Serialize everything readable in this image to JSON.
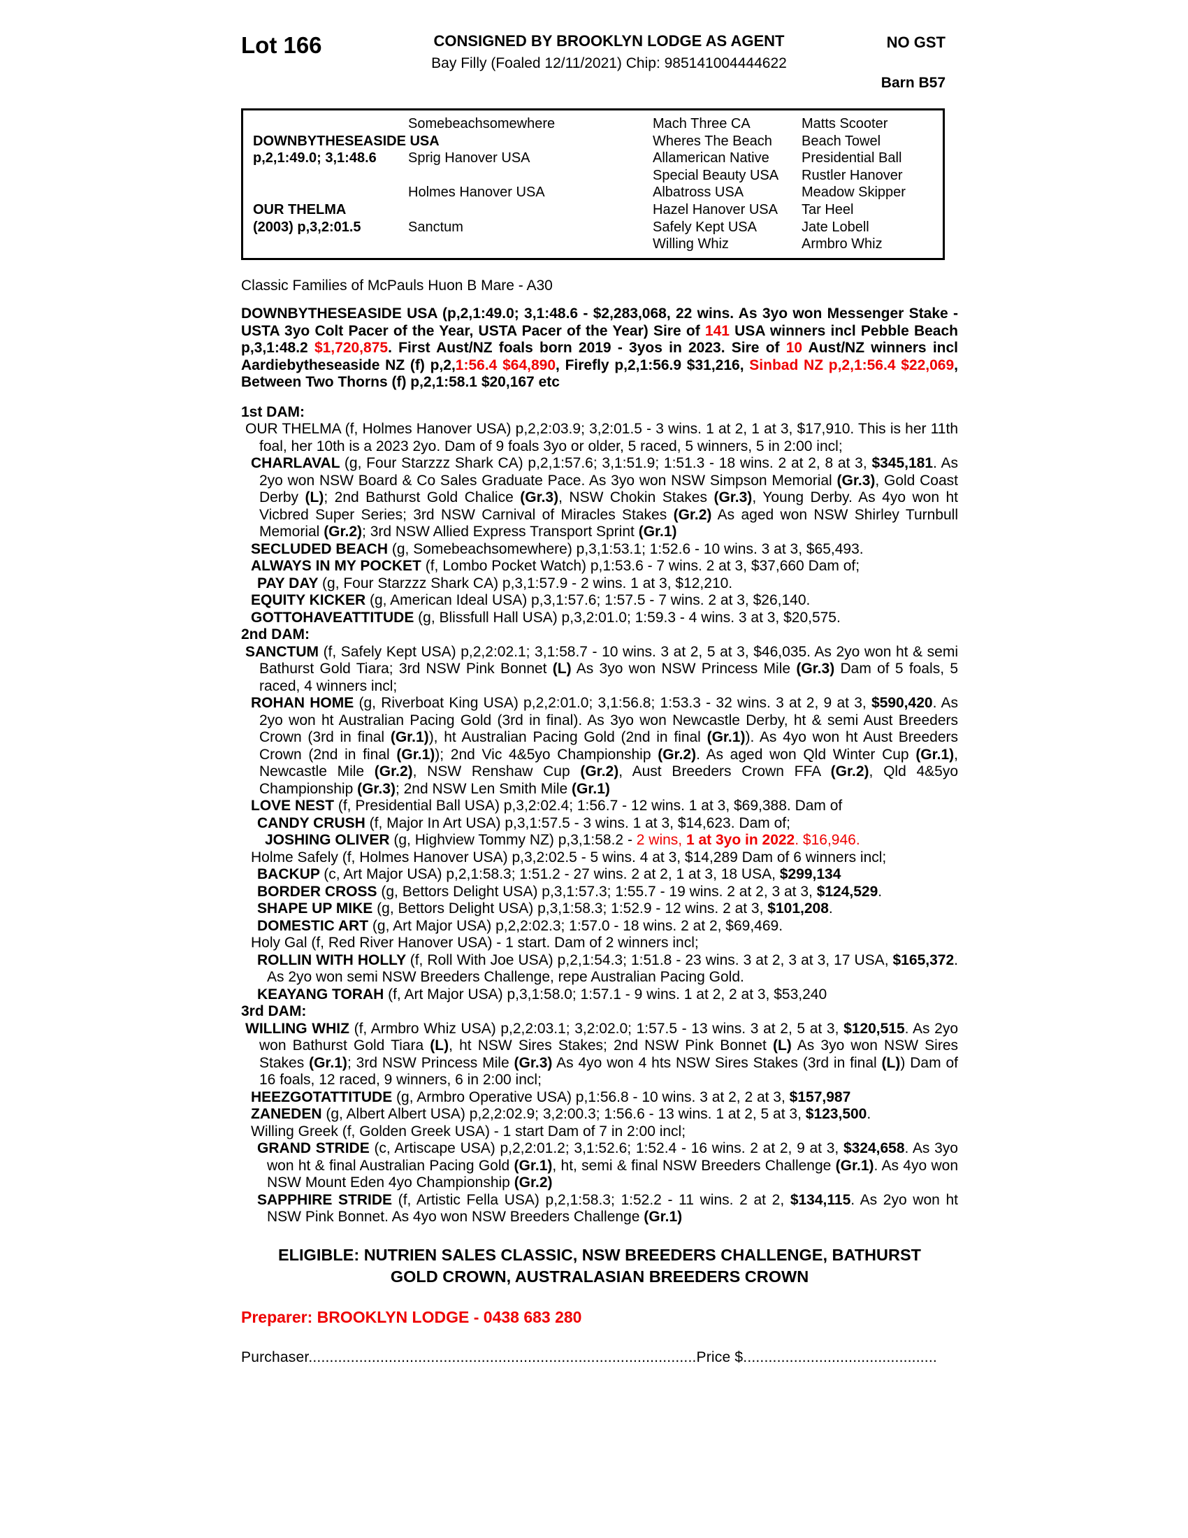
{
  "header": {
    "lot": "Lot 166",
    "consigned": "CONSIGNED BY BROOKLYN LODGE AS AGENT",
    "no_gst": "NO GST",
    "subtitle": "Bay Filly (Foaled 12/11/2021) Chip: 985141004444622",
    "barn": "Barn B57"
  },
  "pedigree": {
    "rows": [
      [
        "",
        "Somebeachsomewhere",
        "Mach Three CA",
        "Matts Scooter"
      ],
      [
        "DOWNBYTHESEASIDE USA",
        "",
        "Wheres The Beach",
        "Beach Towel"
      ],
      [
        "p,2,1:49.0; 3,1:48.6",
        "Sprig Hanover USA",
        "Allamerican Native",
        "Presidential Ball"
      ],
      [
        "",
        "",
        "Special Beauty USA",
        "Rustler Hanover"
      ],
      [
        "",
        "Holmes Hanover USA",
        "Albatross USA",
        "Meadow Skipper"
      ],
      [
        "OUR THELMA",
        "",
        "Hazel Hanover USA",
        "Tar Heel"
      ],
      [
        "(2003) p,3,2:01.5",
        "Sanctum",
        "Safely Kept USA",
        "Jate Lobell"
      ],
      [
        "",
        "",
        "Willing Whiz",
        "Armbro Whiz"
      ]
    ]
  },
  "body": [
    {
      "name": "classic-families-line",
      "cls": "i0",
      "mt": 0,
      "seg": [
        {
          "t": "Classic Families of McPauls Huon B Mare - A30"
        }
      ]
    },
    {
      "name": "sire-summary",
      "cls": "i0 just",
      "mt": 16,
      "seg": [
        {
          "t": "DOWNBYTHESEASIDE USA (p,2,1:49.0; 3,1:48.6 - $2,283,068, 22 wins. As 3yo won Messenger Stake - USTA 3yo Colt Pacer of the Year, USTA Pacer of the Year) Sire of ",
          "b": true
        },
        {
          "t": "141",
          "b": true,
          "r": true
        },
        {
          "t": " USA winners incl Pebble Beach p,3,1:48.2 ",
          "b": true
        },
        {
          "t": "$1,720,875",
          "b": true,
          "r": true
        },
        {
          "t": ". First Aust/NZ foals born 2019 - 3yos in 2023. Sire of ",
          "b": true
        },
        {
          "t": "10",
          "b": true,
          "r": true
        },
        {
          "t": " Aust/NZ winners incl Aardiebytheseaside NZ (f) p,2,",
          "b": true
        },
        {
          "t": "1:56.4 $64,890",
          "b": true,
          "r": true
        },
        {
          "t": ", Firefly p,2,1:56.9 $31,216, ",
          "b": true
        },
        {
          "t": "Sinbad NZ p,2,1:56.4 $22,069",
          "b": true,
          "r": true
        },
        {
          "t": ", Between Two Thorns (f) p,2,1:58.1 $20,167 etc",
          "b": true
        }
      ]
    },
    {
      "name": "first-dam-heading",
      "cls": "i0",
      "mt": 18,
      "seg": [
        {
          "t": "1st DAM:",
          "b": true
        }
      ]
    },
    {
      "name": "entry-our-thelma",
      "cls": "h0 just",
      "mt": 0,
      "seg": [
        {
          "t": "OUR THELMA (f, Holmes Hanover USA) p,2,2:03.9; 3,2:01.5 - 3 wins. 1 at 2, 1 at 3, $17,910. This is her 11th foal, her 10th is a 2023 2yo. Dam of 9 foals 3yo or older, 5 raced, 5 winners, 5 in 2:00 incl;"
        }
      ]
    },
    {
      "name": "entry-charlaval",
      "cls": "h1 just",
      "mt": 0,
      "seg": [
        {
          "t": "CHARLAVAL ",
          "b": true
        },
        {
          "t": "(g, Four Starzzz Shark CA) p,2,1:57.6; 3,1:51.9; 1:51.3 - 18 wins. 2 at 2, 8 at 3, "
        },
        {
          "t": "$345,181",
          "b": true
        },
        {
          "t": ". As 2yo won NSW Board & Co Sales Graduate Pace. As 3yo won NSW Simpson Memorial "
        },
        {
          "t": "(Gr.3)",
          "b": true
        },
        {
          "t": ", Gold Coast Derby "
        },
        {
          "t": "(L)",
          "b": true
        },
        {
          "t": "; 2nd Bathurst Gold Chalice "
        },
        {
          "t": "(Gr.3)",
          "b": true
        },
        {
          "t": ", NSW Chokin Stakes "
        },
        {
          "t": "(Gr.3)",
          "b": true
        },
        {
          "t": ", Young Derby. As 4yo won ht Vicbred Super Series; 3rd NSW Carnival of Miracles Stakes "
        },
        {
          "t": "(Gr.2)",
          "b": true
        },
        {
          "t": " As aged won NSW Shirley Turnbull Memorial "
        },
        {
          "t": "(Gr.2)",
          "b": true
        },
        {
          "t": "; 3rd NSW Allied Express Transport Sprint "
        },
        {
          "t": "(Gr.1)",
          "b": true
        }
      ]
    },
    {
      "name": "entry-secluded-beach",
      "cls": "h1",
      "mt": 0,
      "seg": [
        {
          "t": "SECLUDED BEACH ",
          "b": true
        },
        {
          "t": "(g, Somebeachsomewhere) p,3,1:53.1; 1:52.6 - 10 wins. 3 at 3, $65,493."
        }
      ]
    },
    {
      "name": "entry-always-in-my-pocket",
      "cls": "h1",
      "mt": 0,
      "seg": [
        {
          "t": "ALWAYS IN MY POCKET ",
          "b": true
        },
        {
          "t": "(f, Lombo Pocket Watch) p,1:53.6 - 7 wins. 2 at 3, $37,660 Dam of;"
        }
      ]
    },
    {
      "name": "entry-pay-day",
      "cls": "h2",
      "mt": 0,
      "seg": [
        {
          "t": "PAY DAY ",
          "b": true
        },
        {
          "t": "(g, Four Starzzz Shark CA) p,3,1:57.9 - 2 wins. 1 at 3, $12,210."
        }
      ]
    },
    {
      "name": "entry-equity-kicker",
      "cls": "h1",
      "mt": 0,
      "seg": [
        {
          "t": "EQUITY KICKER ",
          "b": true
        },
        {
          "t": "(g, American Ideal USA) p,3,1:57.6; 1:57.5 - 7 wins. 2 at 3, $26,140."
        }
      ]
    },
    {
      "name": "entry-gottohaveattitude",
      "cls": "h1",
      "mt": 0,
      "seg": [
        {
          "t": "GOTTOHAVEATTITUDE ",
          "b": true
        },
        {
          "t": "(g, Blissfull Hall USA) p,3,2:01.0; 1:59.3 - 4 wins. 3 at 3, $20,575."
        }
      ]
    },
    {
      "name": "second-dam-heading",
      "cls": "i0",
      "mt": 0,
      "seg": [
        {
          "t": "2nd DAM:",
          "b": true
        }
      ]
    },
    {
      "name": "entry-sanctum",
      "cls": "h0 just",
      "mt": 0,
      "seg": [
        {
          "t": "SANCTUM ",
          "b": true
        },
        {
          "t": "(f, Safely Kept USA) p,2,2:02.1; 3,1:58.7 - 10 wins. 3 at 2, 5 at 3, $46,035. As 2yo won ht & semi Bathurst Gold Tiara; 3rd NSW Pink Bonnet "
        },
        {
          "t": "(L)",
          "b": true
        },
        {
          "t": " As 3yo won NSW Princess Mile "
        },
        {
          "t": "(Gr.3)",
          "b": true
        },
        {
          "t": " Dam of 5 foals, 5 raced, 4 winners incl;"
        }
      ]
    },
    {
      "name": "entry-rohan-home",
      "cls": "h1 just",
      "mt": 0,
      "seg": [
        {
          "t": "ROHAN HOME ",
          "b": true
        },
        {
          "t": "(g, Riverboat King USA) p,2,2:01.0; 3,1:56.8; 1:53.3 - 32 wins. 3 at 2, 9 at 3, "
        },
        {
          "t": "$590,420",
          "b": true
        },
        {
          "t": ". As 2yo won ht Australian Pacing Gold (3rd in final). As 3yo won Newcastle Derby, ht & semi Aust Breeders Crown (3rd in final "
        },
        {
          "t": "(Gr.1)",
          "b": true
        },
        {
          "t": "), ht Australian Pacing Gold (2nd in final "
        },
        {
          "t": "(Gr.1)",
          "b": true
        },
        {
          "t": "). As 4yo won ht Aust Breeders Crown (2nd in final "
        },
        {
          "t": "(Gr.1)",
          "b": true
        },
        {
          "t": "); 2nd Vic 4&5yo Championship "
        },
        {
          "t": "(Gr.2)",
          "b": true
        },
        {
          "t": ". As aged won Qld Winter Cup "
        },
        {
          "t": "(Gr.1)",
          "b": true
        },
        {
          "t": ", Newcastle Mile "
        },
        {
          "t": "(Gr.2)",
          "b": true
        },
        {
          "t": ", NSW Renshaw Cup "
        },
        {
          "t": "(Gr.2)",
          "b": true
        },
        {
          "t": ", Aust Breeders Crown FFA "
        },
        {
          "t": "(Gr.2)",
          "b": true
        },
        {
          "t": ", Qld 4&5yo Championship "
        },
        {
          "t": "(Gr.3)",
          "b": true
        },
        {
          "t": "; 2nd NSW Len Smith Mile "
        },
        {
          "t": "(Gr.1)",
          "b": true
        }
      ]
    },
    {
      "name": "entry-love-nest",
      "cls": "h1",
      "mt": 0,
      "seg": [
        {
          "t": "LOVE NEST ",
          "b": true
        },
        {
          "t": "(f, Presidential Ball USA) p,3,2:02.4; 1:56.7 - 12 wins. 1 at 3, $69,388. Dam of"
        }
      ]
    },
    {
      "name": "entry-candy-crush",
      "cls": "h2",
      "mt": 0,
      "seg": [
        {
          "t": "CANDY CRUSH ",
          "b": true
        },
        {
          "t": "(f, Major In Art USA) p,3,1:57.5 - 3 wins. 1 at 3, $14,623. Dam of;"
        }
      ]
    },
    {
      "name": "entry-joshing-oliver",
      "cls": "h3",
      "mt": 0,
      "seg": [
        {
          "t": "JOSHING OLIVER ",
          "b": true
        },
        {
          "t": "(g, Highview Tommy NZ) p,3,1:58.2 - "
        },
        {
          "t": "2 wins, ",
          "r": true
        },
        {
          "t": "1 at 3yo in 2022",
          "b": true,
          "r": true
        },
        {
          "t": ". $16,946.",
          "r": true
        }
      ]
    },
    {
      "name": "entry-holme-safely",
      "cls": "h1",
      "mt": 0,
      "seg": [
        {
          "t": "Holme Safely (f, Holmes Hanover USA) p,3,2:02.5 - 5 wins. 4 at 3, $14,289 Dam of 6 winners incl;"
        }
      ]
    },
    {
      "name": "entry-backup",
      "cls": "h2",
      "mt": 0,
      "seg": [
        {
          "t": "BACKUP ",
          "b": true
        },
        {
          "t": "(c, Art Major USA) p,2,1:58.3; 1:51.2 - 27 wins. 2 at 2, 1 at 3, 18 USA, "
        },
        {
          "t": "$299,134",
          "b": true
        }
      ]
    },
    {
      "name": "entry-border-cross",
      "cls": "h2",
      "mt": 0,
      "seg": [
        {
          "t": "BORDER CROSS ",
          "b": true
        },
        {
          "t": "(g, Bettors Delight USA) p,3,1:57.3; 1:55.7 - 19 wins. 2 at 2, 3 at 3, "
        },
        {
          "t": "$124,529",
          "b": true
        },
        {
          "t": "."
        }
      ]
    },
    {
      "name": "entry-shape-up-mike",
      "cls": "h2",
      "mt": 0,
      "seg": [
        {
          "t": "SHAPE UP MIKE ",
          "b": true
        },
        {
          "t": "(g, Bettors Delight USA) p,3,1:58.3; 1:52.9 - 12 wins. 2 at 3, "
        },
        {
          "t": "$101,208",
          "b": true
        },
        {
          "t": "."
        }
      ]
    },
    {
      "name": "entry-domestic-art",
      "cls": "h2",
      "mt": 0,
      "seg": [
        {
          "t": "DOMESTIC ART ",
          "b": true
        },
        {
          "t": "(g, Art Major USA) p,2,2:02.3; 1:57.0 - 18 wins. 2 at 2, $69,469."
        }
      ]
    },
    {
      "name": "entry-holy-gal",
      "cls": "h1",
      "mt": 0,
      "seg": [
        {
          "t": "Holy Gal (f, Red River Hanover USA) - 1 start. Dam of 2 winners incl;"
        }
      ]
    },
    {
      "name": "entry-rollin-with-holly",
      "cls": "h2 just",
      "mt": 0,
      "seg": [
        {
          "t": "ROLLIN WITH HOLLY ",
          "b": true
        },
        {
          "t": "(f, Roll With Joe USA) p,2,1:54.3; 1:51.8 - 23 wins. 3 at 2, 3 at 3, 17 USA, "
        },
        {
          "t": "$165,372",
          "b": true
        },
        {
          "t": ". As 2yo won semi NSW Breeders Challenge, repe Australian Pacing Gold."
        }
      ]
    },
    {
      "name": "entry-keayang-torah",
      "cls": "h2",
      "mt": 0,
      "seg": [
        {
          "t": "KEAYANG TORAH ",
          "b": true
        },
        {
          "t": "(f, Art Major USA) p,3,1:58.0; 1:57.1 - 9 wins. 1 at 2, 2 at 3, $53,240"
        }
      ]
    },
    {
      "name": "third-dam-heading",
      "cls": "i0",
      "mt": 0,
      "seg": [
        {
          "t": "3rd DAM:",
          "b": true
        }
      ]
    },
    {
      "name": "entry-willing-whiz",
      "cls": "h0 just",
      "mt": 0,
      "seg": [
        {
          "t": "WILLING WHIZ ",
          "b": true
        },
        {
          "t": "(f, Armbro Whiz USA) p,2,2:03.1; 3,2:02.0; 1:57.5 - 13 wins. 3 at 2, 5 at 3, "
        },
        {
          "t": "$120,515",
          "b": true
        },
        {
          "t": ". As 2yo won Bathurst Gold Tiara "
        },
        {
          "t": "(L)",
          "b": true
        },
        {
          "t": ", ht NSW Sires Stakes; 2nd NSW Pink Bonnet "
        },
        {
          "t": "(L)",
          "b": true
        },
        {
          "t": " As 3yo won NSW Sires Stakes "
        },
        {
          "t": "(Gr.1)",
          "b": true
        },
        {
          "t": "; 3rd NSW Princess Mile "
        },
        {
          "t": "(Gr.3)",
          "b": true
        },
        {
          "t": " As 4yo won 4 hts NSW Sires Stakes (3rd in final "
        },
        {
          "t": "(L)",
          "b": true
        },
        {
          "t": ") Dam of 16 foals, 12 raced, 9 winners, 6 in 2:00 incl;"
        }
      ]
    },
    {
      "name": "entry-heezgotattitude",
      "cls": "h1",
      "mt": 0,
      "seg": [
        {
          "t": "HEEZGOTATTITUDE ",
          "b": true
        },
        {
          "t": "(g, Armbro Operative USA) p,1:56.8 - 10 wins. 3 at 2, 2 at 3, "
        },
        {
          "t": "$157,987",
          "b": true
        }
      ]
    },
    {
      "name": "entry-zaneden",
      "cls": "h1",
      "mt": 0,
      "seg": [
        {
          "t": "ZANEDEN ",
          "b": true
        },
        {
          "t": "(g, Albert Albert USA) p,2,2:02.9; 3,2:00.3; 1:56.6 - 13 wins. 1 at 2, 5 at 3, "
        },
        {
          "t": "$123,500",
          "b": true
        },
        {
          "t": "."
        }
      ]
    },
    {
      "name": "entry-willing-greek",
      "cls": "h1",
      "mt": 0,
      "seg": [
        {
          "t": "Willing Greek (f, Golden Greek USA) - 1 start Dam of 7 in 2:00 incl;"
        }
      ]
    },
    {
      "name": "entry-grand-stride",
      "cls": "h2 just",
      "mt": 0,
      "seg": [
        {
          "t": "GRAND STRIDE ",
          "b": true
        },
        {
          "t": "(c, Artiscape USA) p,2,2:01.2; 3,1:52.6; 1:52.4 - 16 wins. 2 at 2, 9 at 3, "
        },
        {
          "t": "$324,658",
          "b": true
        },
        {
          "t": ". As 3yo won ht & final Australian Pacing Gold "
        },
        {
          "t": "(Gr.1)",
          "b": true
        },
        {
          "t": ", ht, semi & final NSW Breeders Challenge "
        },
        {
          "t": "(Gr.1)",
          "b": true
        },
        {
          "t": ". As 4yo won NSW Mount Eden 4yo Championship "
        },
        {
          "t": "(Gr.2)",
          "b": true
        }
      ]
    },
    {
      "name": "entry-sapphire-stride",
      "cls": "h2 just",
      "mt": 0,
      "seg": [
        {
          "t": "SAPPHIRE STRIDE ",
          "b": true
        },
        {
          "t": "(f, Artistic Fella USA) p,2,1:58.3; 1:52.2 - 11 wins. 2 at 2, "
        },
        {
          "t": "$134,115",
          "b": true
        },
        {
          "t": ". As 2yo won ht NSW Pink Bonnet. As 4yo won NSW Breeders Challenge "
        },
        {
          "t": "(Gr.1)",
          "b": true
        }
      ]
    },
    {
      "name": "eligible-line-1",
      "cls": "ctr",
      "mt": 26,
      "seg": [
        {
          "t": "ELIGIBLE: NUTRIEN SALES CLASSIC, NSW BREEDERS CHALLENGE, BATHURST",
          "b": true
        }
      ]
    },
    {
      "name": "eligible-line-2",
      "cls": "ctr",
      "mt": 0,
      "seg": [
        {
          "t": "GOLD CROWN, AUSTRALASIAN BREEDERS CROWN",
          "b": true
        }
      ]
    },
    {
      "name": "preparer-line",
      "cls": "prep",
      "mt": 30,
      "seg": [
        {
          "t": "Preparer: BROOKLYN LODGE - 0438 683 280",
          "b": true,
          "r": true
        }
      ]
    },
    {
      "name": "purchaser-line",
      "cls": "purch",
      "mt": 34,
      "seg": [
        {
          "t": "Purchaser"
        },
        {
          "t": "............................................................................................"
        },
        {
          "t": "Price $"
        },
        {
          "t": ".............................................."
        }
      ]
    }
  ]
}
